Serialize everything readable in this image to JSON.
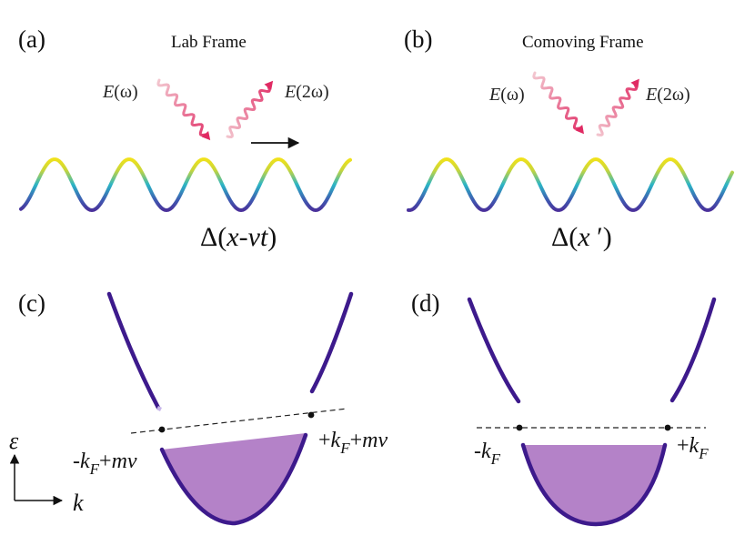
{
  "panels": {
    "a": {
      "label": "(a)",
      "title": "Lab Frame",
      "e_in": "E(ω)",
      "e_out": "E(2ω)",
      "delta": "Δ(x-vt)"
    },
    "b": {
      "label": "(b)",
      "title": "Comoving Frame",
      "e_in": "E(ω)",
      "e_out": "E(2ω)",
      "delta": "Δ(x′)"
    },
    "c": {
      "label": "(c)",
      "left_point": "-kF+mv",
      "right_point": "+kF+mv"
    },
    "d": {
      "label": "(d)",
      "left_point": "-kF",
      "right_point": "+kF"
    }
  },
  "axes": {
    "vertical": "ε",
    "horizontal": "k"
  },
  "colors": {
    "band": "#3d1a8c",
    "filled": "#b482c8",
    "wave_peak": "#f2e21a",
    "wave_mid": "#2bb5c6",
    "wave_trough": "#4a2f9a",
    "photon": "#e8306a"
  }
}
